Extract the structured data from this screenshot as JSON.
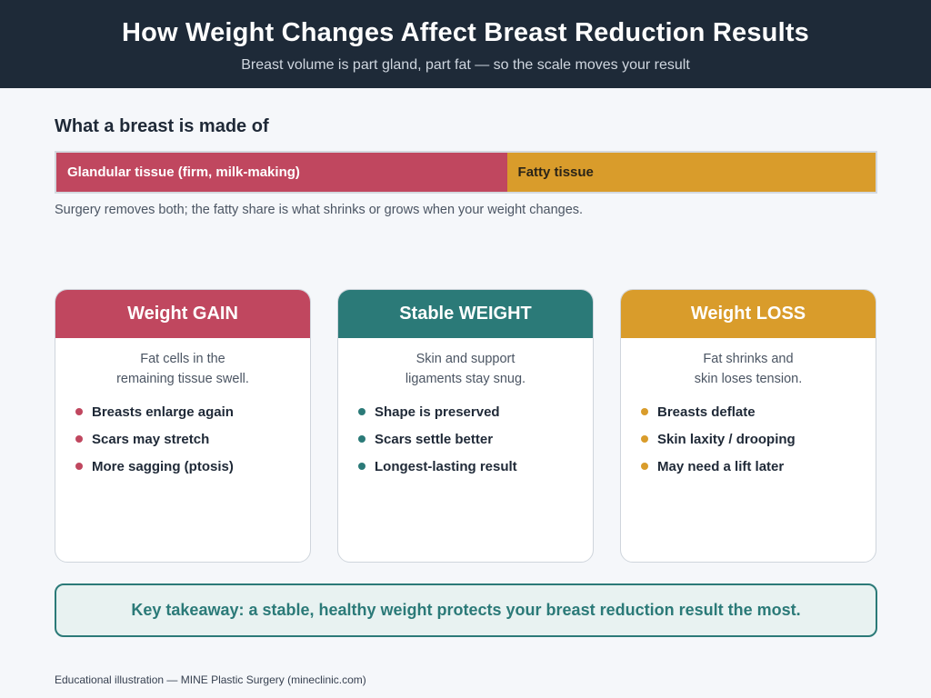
{
  "header": {
    "title": "How Weight Changes Affect Breast Reduction Results",
    "subtitle": "Breast volume is part gland, part fat — so the scale moves your result"
  },
  "composition": {
    "heading": "What a breast is made of",
    "segments": [
      {
        "label": "Glandular tissue (firm, milk-making)",
        "share": 0.55,
        "color": "#c0475f",
        "text_color": "#ffffff"
      },
      {
        "label": "Fatty tissue",
        "share": 0.45,
        "color": "#d99c2b",
        "text_color": "#2a2418"
      }
    ],
    "note": "Surgery removes both; the fatty share is what shrinks or grows when your weight changes."
  },
  "cards": [
    {
      "title": "Weight GAIN",
      "color": "#c0475f",
      "desc": [
        "Fat cells in the",
        "remaining tissue swell."
      ],
      "items": [
        "Breasts enlarge again",
        "Scars may stretch",
        "More sagging (ptosis)"
      ]
    },
    {
      "title": "Stable WEIGHT",
      "color": "#2b7a78",
      "desc": [
        "Skin and support",
        "ligaments stay snug."
      ],
      "items": [
        "Shape is preserved",
        "Scars settle better",
        "Longest-lasting result"
      ]
    },
    {
      "title": "Weight LOSS",
      "color": "#d99c2b",
      "desc": [
        "Fat shrinks and",
        "skin loses tension."
      ],
      "items": [
        "Breasts deflate",
        "Skin laxity / drooping",
        "May need a lift later"
      ]
    }
  ],
  "takeaway": "Key takeaway: a stable, healthy weight protects your breast reduction result the most.",
  "footer": "Educational illustration — MINE Plastic Surgery (mineclinic.com)"
}
